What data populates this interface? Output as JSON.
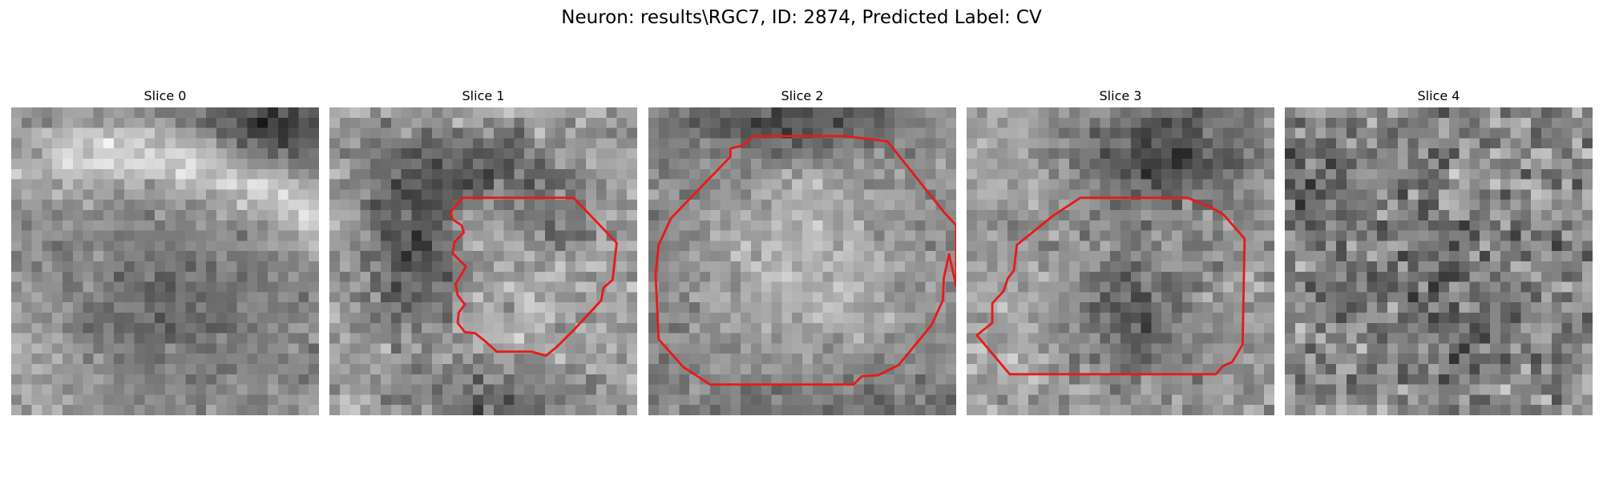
{
  "figure": {
    "title": "Neuron: results\\RGC7, ID: 2874, Predicted Label: CV"
  },
  "image_style": {
    "colormap": "grayscale",
    "grid_size": 30,
    "contour_color": "#e8191a"
  },
  "panels": [
    {
      "title": "Slice 0",
      "has_contour": false
    },
    {
      "title": "Slice 1",
      "has_contour": true
    },
    {
      "title": "Slice 2",
      "has_contour": true
    },
    {
      "title": "Slice 3",
      "has_contour": true
    },
    {
      "title": "Slice 4",
      "has_contour": false
    }
  ]
}
